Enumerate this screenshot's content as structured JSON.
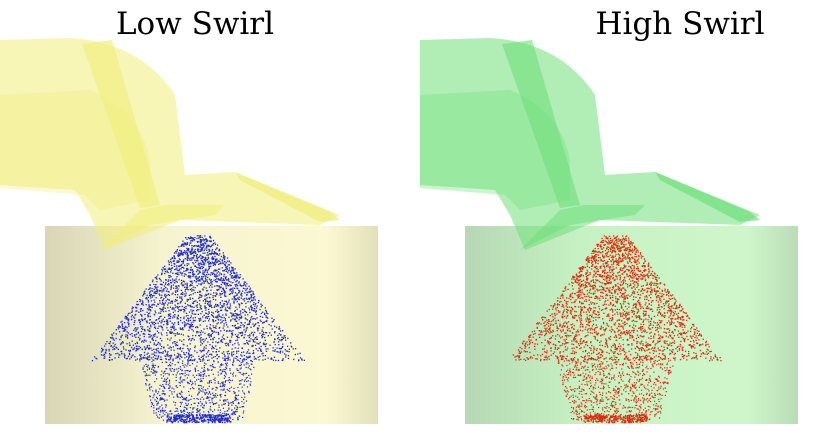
{
  "panels": [
    {
      "title": "Low Swirl",
      "port_color": "#f0ee7a",
      "cylinder_color": "#f6f3c4",
      "spray_color": "#1f2bd6"
    },
    {
      "title": "High Swirl",
      "port_color": "#6fe07a",
      "cylinder_color": "#c4f0c2",
      "spray_color": "#e02a0a"
    }
  ]
}
